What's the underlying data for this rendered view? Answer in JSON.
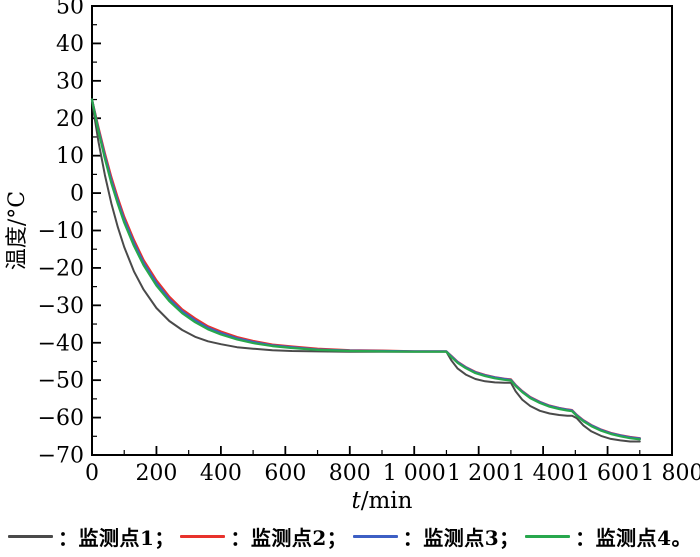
{
  "chart_data": {
    "type": "line",
    "title": "",
    "xlabel_var": "t",
    "xlabel_unit": "/min",
    "ylabel": "温度/°C",
    "grid": false,
    "legend_position": "bottom",
    "x_axis": {
      "min": 0,
      "max": 1800,
      "major_step": 200,
      "minor_step": 100,
      "tick_values": [
        0,
        200,
        400,
        600,
        800,
        1000,
        1200,
        1400,
        1600,
        1800
      ],
      "tick_labels": [
        "0",
        "200",
        "400",
        "600",
        "800",
        "1 000",
        "1 200",
        "1 400",
        "1 600",
        "1 800"
      ]
    },
    "y_axis": {
      "min": -70,
      "max": 50,
      "major_step": 10,
      "minor_step": 5,
      "tick_values": [
        -70,
        -60,
        -50,
        -40,
        -30,
        -20,
        -10,
        0,
        10,
        20,
        30,
        40,
        50
      ],
      "tick_labels": [
        "−70",
        "−60",
        "−50",
        "−40",
        "−30",
        "−20",
        "−10",
        "0",
        "10",
        "20",
        "30",
        "40",
        "50"
      ]
    },
    "t": [
      0,
      20,
      40,
      60,
      80,
      100,
      130,
      160,
      200,
      240,
      280,
      320,
      360,
      400,
      450,
      500,
      560,
      620,
      700,
      800,
      900,
      1000,
      1100,
      1115,
      1135,
      1160,
      1190,
      1220,
      1250,
      1280,
      1300,
      1315,
      1335,
      1360,
      1390,
      1420,
      1450,
      1475,
      1490,
      1505,
      1525,
      1550,
      1580,
      1610,
      1640,
      1670,
      1700
    ],
    "series": [
      {
        "name": "监测点1",
        "color": "#4a4a4a",
        "width": 2,
        "values": [
          24.5,
          13.8,
          4.8,
          -2.7,
          -9.1,
          -14.4,
          -20.9,
          -25.8,
          -30.7,
          -34.2,
          -36.6,
          -38.4,
          -39.6,
          -40.4,
          -41.2,
          -41.6,
          -42.0,
          -42.2,
          -42.3,
          -42.4,
          -42.4,
          -42.4,
          -42.4,
          -44.7,
          -46.9,
          -48.5,
          -49.7,
          -50.3,
          -50.6,
          -50.7,
          -50.7,
          -53.0,
          -55.2,
          -56.9,
          -58.2,
          -58.9,
          -59.3,
          -59.5,
          -59.5,
          -60.2,
          -62.1,
          -63.7,
          -64.9,
          -65.7,
          -66.1,
          -66.4,
          -66.4
        ]
      },
      {
        "name": "监测点2",
        "color": "#e8322c",
        "width": 2.2,
        "values": [
          25.0,
          17.6,
          10.6,
          4.3,
          -1.3,
          -6.3,
          -12.5,
          -17.9,
          -23.3,
          -27.7,
          -31.1,
          -33.5,
          -35.6,
          -37.0,
          -38.5,
          -39.5,
          -40.5,
          -41.0,
          -41.6,
          -42.0,
          -42.1,
          -42.3,
          -42.3,
          -43.5,
          -45.1,
          -46.5,
          -47.8,
          -48.6,
          -49.2,
          -49.6,
          -49.8,
          -51.3,
          -52.9,
          -54.5,
          -55.8,
          -56.8,
          -57.4,
          -57.8,
          -58.0,
          -59.3,
          -60.7,
          -62.0,
          -63.2,
          -64.1,
          -64.7,
          -65.2,
          -65.5
        ]
      },
      {
        "name": "监测点3",
        "color": "#3d5fc4",
        "width": 2.2,
        "values": [
          25.0,
          17.1,
          9.9,
          3.5,
          -2.1,
          -7.1,
          -13.3,
          -18.6,
          -24.0,
          -28.3,
          -31.6,
          -34.0,
          -36.0,
          -37.4,
          -38.8,
          -39.8,
          -40.7,
          -41.2,
          -41.8,
          -42.1,
          -42.2,
          -42.3,
          -42.3,
          -43.6,
          -45.2,
          -46.6,
          -47.9,
          -48.7,
          -49.3,
          -49.7,
          -49.9,
          -51.4,
          -53.0,
          -54.6,
          -55.9,
          -56.9,
          -57.5,
          -57.9,
          -58.1,
          -59.4,
          -60.8,
          -62.1,
          -63.3,
          -64.2,
          -64.8,
          -65.3,
          -65.6
        ]
      },
      {
        "name": "监测点4",
        "color": "#28a74d",
        "width": 2.2,
        "values": [
          25.0,
          16.6,
          9.2,
          2.7,
          -2.9,
          -7.9,
          -14.1,
          -19.3,
          -24.7,
          -28.9,
          -32.1,
          -34.5,
          -36.4,
          -37.8,
          -39.1,
          -40.1,
          -40.9,
          -41.4,
          -41.9,
          -42.2,
          -42.3,
          -42.4,
          -42.4,
          -43.8,
          -45.4,
          -46.8,
          -48.1,
          -48.9,
          -49.5,
          -49.9,
          -50.1,
          -51.6,
          -53.2,
          -54.8,
          -56.1,
          -57.1,
          -57.7,
          -58.1,
          -58.3,
          -59.6,
          -61.0,
          -62.3,
          -63.5,
          -64.4,
          -65.0,
          -65.5,
          -65.8
        ]
      }
    ]
  },
  "legend": {
    "items": [
      {
        "text": "：监测点1；",
        "color": "#4a4a4a"
      },
      {
        "text": "：监测点2；",
        "color": "#e8322c"
      },
      {
        "text": "：监测点3；",
        "color": "#3d5fc4"
      },
      {
        "text": "：监测点4。",
        "color": "#28a74d"
      }
    ]
  }
}
